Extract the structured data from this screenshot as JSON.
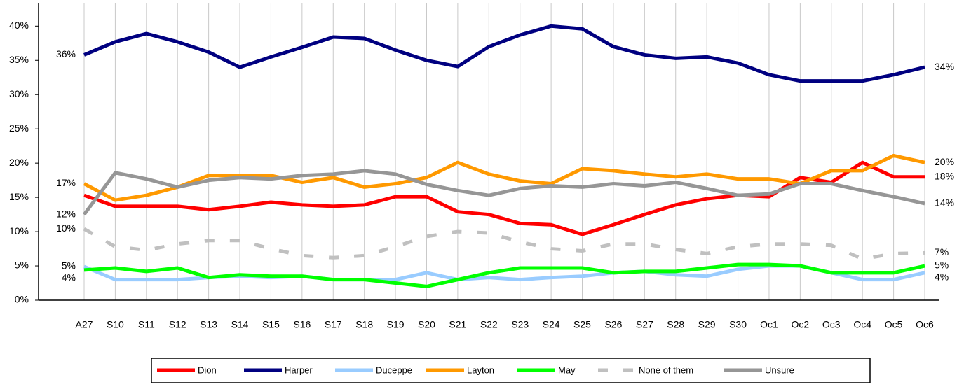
{
  "chart_data": {
    "type": "line",
    "categories": [
      "A27",
      "S10",
      "S11",
      "S12",
      "S13",
      "S14",
      "S15",
      "S16",
      "S17",
      "S18",
      "S19",
      "S20",
      "S21",
      "S22",
      "S23",
      "S24",
      "S25",
      "S26",
      "S27",
      "S28",
      "S29",
      "S30",
      "Oc1",
      "Oc2",
      "Oc3",
      "Oc4",
      "Oc5",
      "Oc6"
    ],
    "ylim": [
      0,
      43.3
    ],
    "yticks": [
      {
        "value": 0,
        "label": "0%"
      },
      {
        "value": 5,
        "label": "5%"
      },
      {
        "value": 10,
        "label": "10%"
      },
      {
        "value": 15,
        "label": "15%"
      },
      {
        "value": 20,
        "label": "20%"
      },
      {
        "value": 25,
        "label": "25%"
      },
      {
        "value": 30,
        "label": "30%"
      },
      {
        "value": 35,
        "label": "35%"
      },
      {
        "value": 40,
        "label": "40%"
      }
    ],
    "xgrid": true,
    "legend": "bottom",
    "series": [
      {
        "name": "Dion",
        "color": "#ff0000",
        "values": [
          15.3,
          13.7,
          13.7,
          13.7,
          13.2,
          13.7,
          14.3,
          13.9,
          13.7,
          13.9,
          15.1,
          15.1,
          12.9,
          12.5,
          11.2,
          11.0,
          9.6,
          11.0,
          12.5,
          13.9,
          14.8,
          15.3,
          15.1,
          17.9,
          17.2,
          20.1,
          18.0,
          18.0
        ],
        "value_labels": [
          null,
          null,
          null,
          null,
          null,
          null,
          null,
          null,
          null,
          null,
          null,
          null,
          null,
          null,
          null,
          null,
          null,
          null,
          null,
          null,
          null,
          null,
          null,
          null,
          null,
          null,
          null,
          "18%"
        ]
      },
      {
        "name": "Harper",
        "color": "#000080",
        "values": [
          35.8,
          37.7,
          38.9,
          37.7,
          36.2,
          34.0,
          35.5,
          36.9,
          38.4,
          38.2,
          36.5,
          35.0,
          34.1,
          37.0,
          38.7,
          40.0,
          39.6,
          37.0,
          35.8,
          35.3,
          35.5,
          34.6,
          32.9,
          32.0,
          32.0,
          32.0,
          32.9,
          34.0
        ],
        "value_labels": [
          "36%",
          null,
          null,
          null,
          null,
          null,
          null,
          null,
          null,
          null,
          null,
          null,
          null,
          null,
          null,
          null,
          null,
          null,
          null,
          null,
          null,
          null,
          null,
          null,
          null,
          null,
          null,
          "34%"
        ]
      },
      {
        "name": "Duceppe",
        "color": "#99ccff",
        "values": [
          4.9,
          3.0,
          3.0,
          3.0,
          3.3,
          3.5,
          3.3,
          3.5,
          3.0,
          3.0,
          3.0,
          4.0,
          3.0,
          3.3,
          3.0,
          3.3,
          3.5,
          4.0,
          4.2,
          3.7,
          3.5,
          4.5,
          5.0,
          5.0,
          4.0,
          3.0,
          3.0,
          4.0
        ],
        "value_labels": [
          "5%",
          null,
          null,
          null,
          null,
          null,
          null,
          null,
          null,
          null,
          null,
          null,
          null,
          null,
          null,
          null,
          null,
          null,
          null,
          null,
          null,
          null,
          null,
          null,
          null,
          null,
          null,
          "4%"
        ]
      },
      {
        "name": "Layton",
        "color": "#ff9900",
        "values": [
          17.0,
          14.6,
          15.3,
          16.5,
          18.2,
          18.2,
          18.2,
          17.2,
          17.9,
          16.5,
          17.0,
          17.9,
          20.1,
          18.4,
          17.4,
          17.0,
          19.2,
          18.9,
          18.4,
          18.0,
          18.4,
          17.7,
          17.7,
          17.0,
          18.9,
          18.9,
          21.1,
          20.1
        ],
        "value_labels": [
          "17%",
          null,
          null,
          null,
          null,
          null,
          null,
          null,
          null,
          null,
          null,
          null,
          null,
          null,
          null,
          null,
          null,
          null,
          null,
          null,
          null,
          null,
          null,
          null,
          null,
          null,
          null,
          "20%"
        ]
      },
      {
        "name": "May",
        "color": "#00ff00",
        "values": [
          4.4,
          4.7,
          4.2,
          4.7,
          3.3,
          3.7,
          3.5,
          3.5,
          3.0,
          3.0,
          2.5,
          2.0,
          3.0,
          4.0,
          4.7,
          4.7,
          4.7,
          4.0,
          4.2,
          4.2,
          4.7,
          5.2,
          5.2,
          5.0,
          4.0,
          4.0,
          4.0,
          5.0
        ],
        "value_labels": [
          "4%",
          null,
          null,
          null,
          null,
          null,
          null,
          null,
          null,
          null,
          null,
          null,
          null,
          null,
          null,
          null,
          null,
          null,
          null,
          null,
          null,
          null,
          null,
          null,
          null,
          null,
          null,
          "5%"
        ]
      },
      {
        "name": "None of them",
        "color": "#c0c0c0",
        "dashed": true,
        "values": [
          10.4,
          7.8,
          7.3,
          8.2,
          8.7,
          8.7,
          7.5,
          6.5,
          6.2,
          6.5,
          7.8,
          9.3,
          10.0,
          9.8,
          8.5,
          7.5,
          7.2,
          8.2,
          8.2,
          7.4,
          6.8,
          7.8,
          8.2,
          8.2,
          8.0,
          6.0,
          6.8,
          6.9
        ],
        "value_labels": [
          "10%",
          null,
          null,
          null,
          null,
          null,
          null,
          null,
          null,
          null,
          null,
          null,
          null,
          null,
          null,
          null,
          null,
          null,
          null,
          null,
          null,
          null,
          null,
          null,
          null,
          null,
          null,
          "7%"
        ]
      },
      {
        "name": "Unsure",
        "color": "#969696",
        "values": [
          12.5,
          18.6,
          17.7,
          16.5,
          17.5,
          17.9,
          17.7,
          18.2,
          18.4,
          18.9,
          18.4,
          16.9,
          16.0,
          15.3,
          16.3,
          16.7,
          16.5,
          17.0,
          16.7,
          17.2,
          16.3,
          15.3,
          15.5,
          17.0,
          17.0,
          16.0,
          15.1,
          14.1
        ],
        "value_labels": [
          "12%",
          null,
          null,
          null,
          null,
          null,
          null,
          null,
          null,
          null,
          null,
          null,
          null,
          null,
          null,
          null,
          null,
          null,
          null,
          null,
          null,
          null,
          null,
          null,
          null,
          null,
          null,
          "14%"
        ]
      }
    ]
  }
}
